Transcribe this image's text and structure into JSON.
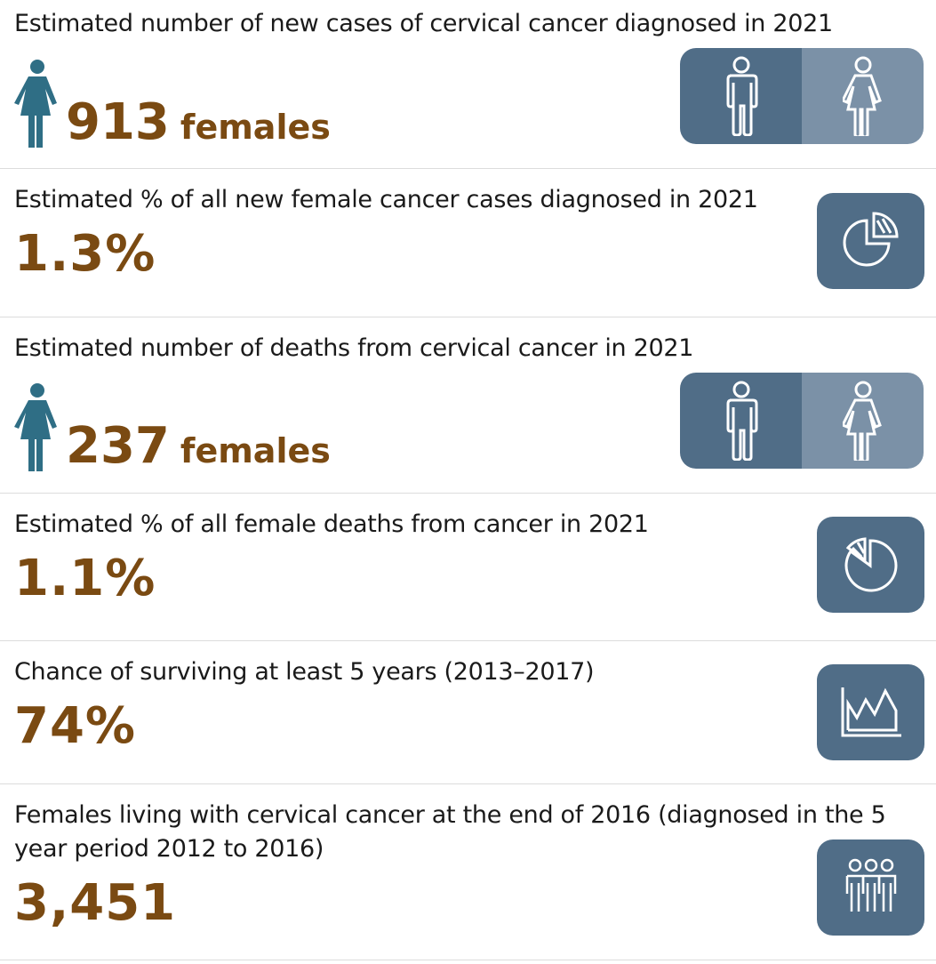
{
  "colors": {
    "value_brown": "#7a4a12",
    "tile_blue": "#506d87",
    "tile_light": "#7b91a7",
    "person_teal": "#2f6e85"
  },
  "stats": [
    {
      "label": "Estimated  number of new cases of cervical cancer diagnosed in 2021",
      "value": "913",
      "unit": "females",
      "icon": "female-person-icon",
      "toggle": [
        "male-icon",
        "female-icon"
      ]
    },
    {
      "label": "Estimated % of all new female cancer cases diagnosed in 2021",
      "value": "1.3%",
      "icon": "pie-chart-icon"
    },
    {
      "label": "Estimated number of deaths from cervical cancer in 2021",
      "value": "237",
      "unit": "females",
      "icon": "female-person-icon",
      "toggle": [
        "male-icon",
        "female-icon"
      ]
    },
    {
      "label": "Estimated % of all female deaths from cancer in 2021",
      "value": "1.1%",
      "icon": "pie-chart-icon"
    },
    {
      "label": "Chance of surviving at least 5 years (2013–2017)",
      "value": "74%",
      "icon": "area-chart-icon"
    },
    {
      "label_line1": "Females living with cervical cancer at the end of 2016 (diagnosed in the 5",
      "label_line2": "year period 2012 to 2016)",
      "value": "3,451",
      "icon": "group-people-icon"
    }
  ]
}
